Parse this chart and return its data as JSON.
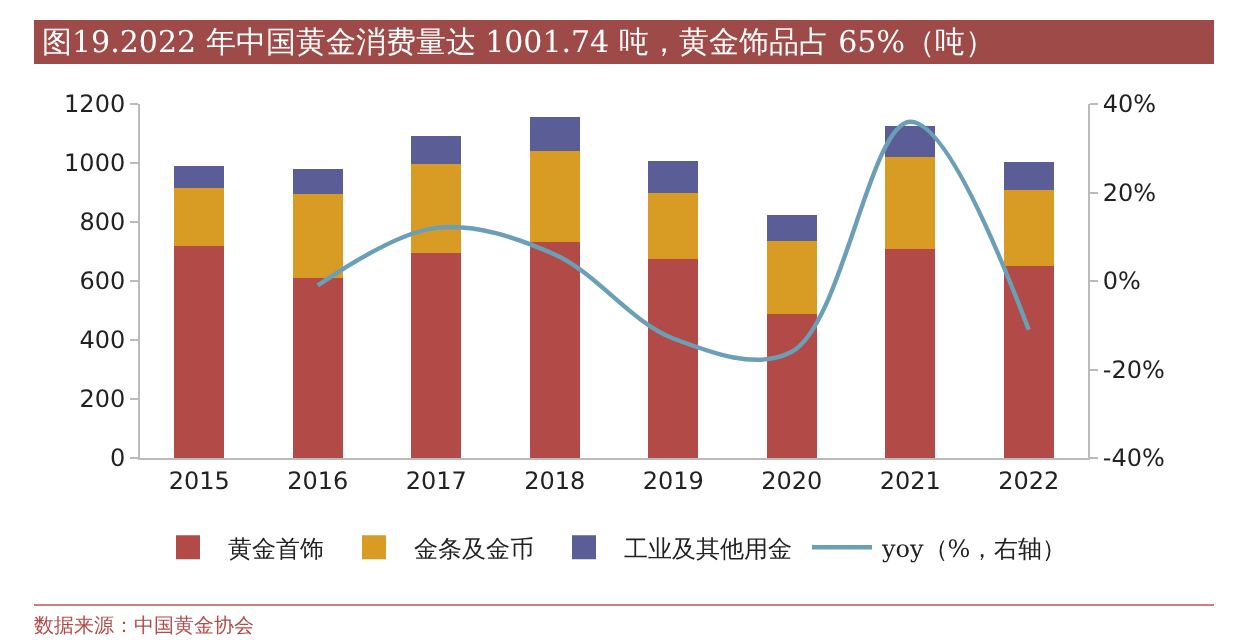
{
  "chart_data": {
    "type": "bar",
    "title": "图19.2022 年中国黄金消费量达 1001.74 吨，黄金饰品占 65%（吨）",
    "categories": [
      "2015",
      "2016",
      "2017",
      "2018",
      "2019",
      "2020",
      "2021",
      "2022"
    ],
    "stacked": true,
    "series": [
      {
        "name": "黄金首饰",
        "color": "#b24a48",
        "values": [
          718,
          609,
          696,
          731,
          673,
          487,
          708,
          650
        ]
      },
      {
        "name": "金条及金币",
        "color": "#d89c25",
        "values": [
          197,
          285,
          300,
          311,
          226,
          247,
          311,
          260
        ]
      },
      {
        "name": "工业及其他用金",
        "color": "#5b5e96",
        "values": [
          76,
          87,
          97,
          115,
          107,
          91,
          107,
          94
        ]
      },
      {
        "name": "yoy（%，右轴）",
        "type": "line",
        "axis": "y2",
        "color": "#6a9fb5",
        "values": [
          null,
          -1,
          12,
          6,
          -13,
          -16,
          36,
          -11
        ]
      }
    ],
    "ylim": [
      0,
      1200
    ],
    "yticks": [
      0,
      200,
      400,
      600,
      800,
      1000,
      1200
    ],
    "y2lim": [
      -40,
      40
    ],
    "y2ticks": [
      {
        "value": -40,
        "label": "-40%"
      },
      {
        "value": -20,
        "label": "-20%"
      },
      {
        "value": 0,
        "label": "0%"
      },
      {
        "value": 20,
        "label": "20%"
      },
      {
        "value": 40,
        "label": "40%"
      }
    ],
    "grid": false,
    "legend": "bottom",
    "marker": "none",
    "line_style": "solid",
    "annotations": [
      "数据来源：中国黄金协会"
    ]
  }
}
